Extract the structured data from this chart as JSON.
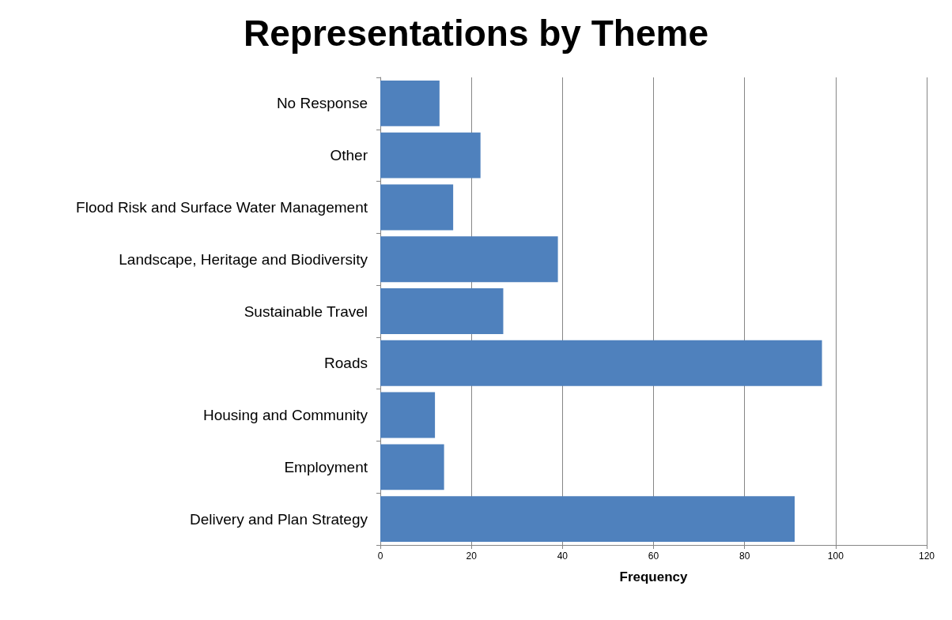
{
  "chart_data": {
    "type": "bar",
    "orientation": "horizontal",
    "title": "Representations by Theme",
    "xlabel": "Frequency",
    "categories": [
      "No Response",
      "Other",
      "Flood Risk and Surface Water Management",
      "Landscape, Heritage and Biodiversity",
      "Sustainable Travel",
      "Roads",
      "Housing and Community",
      "Employment",
      "Delivery and Plan Strategy"
    ],
    "values": [
      13,
      22,
      16,
      39,
      27,
      97,
      12,
      14,
      91
    ],
    "color": "#4f81bd",
    "xlim": [
      0,
      120
    ],
    "xticks": [
      0,
      20,
      40,
      60,
      80,
      100,
      120
    ],
    "grid": "x"
  }
}
